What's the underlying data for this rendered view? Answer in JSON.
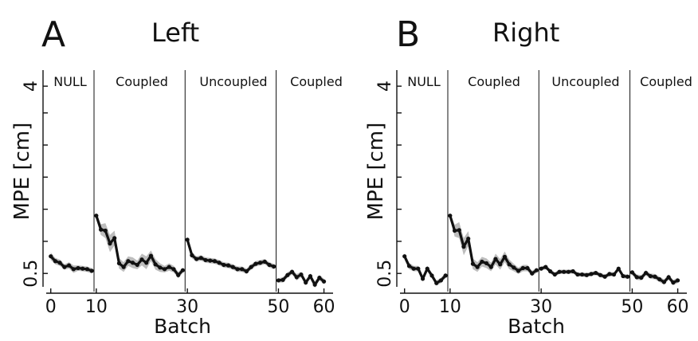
{
  "panels": [
    {
      "letter": "A",
      "title": "Left",
      "ylabel": "MPE [cm]",
      "xlabel": "Batch",
      "phases": [
        "NULL",
        "Coupled",
        "Uncoupled",
        "Coupled"
      ]
    },
    {
      "letter": "B",
      "title": "Right",
      "ylabel": "MPE [cm]",
      "xlabel": "Batch",
      "phases": [
        "NULL",
        "Coupled",
        "Uncoupled",
        "Coupled"
      ]
    }
  ],
  "chart_data": [
    {
      "type": "line",
      "title": "Left",
      "xlabel": "Batch",
      "ylabel": "MPE [cm]",
      "xlim": [
        -1,
        62
      ],
      "ylim": [
        0.25,
        4.3
      ],
      "xticks": [
        0,
        10,
        30,
        50,
        60
      ],
      "yticks": [
        0.5,
        1.1,
        1.7,
        2.3,
        2.9,
        3.5,
        4
      ],
      "ytick_labels": [
        "0.5",
        "",
        "",
        "",
        "",
        "",
        "4"
      ],
      "phase_boundaries": [
        9.5,
        29.5,
        49.5
      ],
      "phases": [
        "NULL",
        "Coupled",
        "Uncoupled",
        "Coupled"
      ],
      "grid": false,
      "segments": [
        {
          "phase": "NULL",
          "x": [
            0,
            1,
            2,
            3,
            4,
            5,
            6,
            7,
            8,
            9
          ],
          "y": [
            0.82,
            0.73,
            0.7,
            0.62,
            0.65,
            0.58,
            0.6,
            0.59,
            0.58,
            0.55
          ],
          "error": [
            0.07,
            0.06,
            0.06,
            0.05,
            0.06,
            0.07,
            0.05,
            0.05,
            0.05,
            0.05
          ]
        },
        {
          "phase": "Coupled",
          "x": [
            10,
            11,
            12,
            13,
            14,
            15,
            16,
            17,
            18,
            19,
            20,
            21,
            22,
            23,
            24,
            25,
            26,
            27,
            28,
            29
          ],
          "y": [
            1.58,
            1.32,
            1.3,
            1.06,
            1.16,
            0.69,
            0.62,
            0.73,
            0.7,
            0.66,
            0.76,
            0.7,
            0.83,
            0.67,
            0.61,
            0.58,
            0.62,
            0.58,
            0.47,
            0.56
          ],
          "error": [
            0.05,
            0.1,
            0.14,
            0.16,
            0.14,
            0.1,
            0.09,
            0.09,
            0.1,
            0.08,
            0.11,
            0.12,
            0.1,
            0.1,
            0.08,
            0.06,
            0.07,
            0.06,
            0.06,
            0.05
          ]
        },
        {
          "phase": "Uncoupled",
          "x": [
            30,
            31,
            32,
            33,
            34,
            35,
            36,
            37,
            38,
            39,
            40,
            41,
            42,
            43,
            44,
            45,
            46,
            47,
            48,
            49
          ],
          "y": [
            1.13,
            0.84,
            0.77,
            0.79,
            0.75,
            0.74,
            0.73,
            0.7,
            0.66,
            0.65,
            0.62,
            0.58,
            0.58,
            0.54,
            0.62,
            0.68,
            0.7,
            0.72,
            0.66,
            0.63
          ],
          "error": [
            0.04,
            0.06,
            0.05,
            0.05,
            0.05,
            0.05,
            0.05,
            0.05,
            0.05,
            0.05,
            0.05,
            0.05,
            0.05,
            0.05,
            0.05,
            0.05,
            0.05,
            0.05,
            0.05,
            0.05
          ]
        },
        {
          "phase": "Coupled",
          "x": [
            50,
            51,
            52,
            53,
            54,
            55,
            56,
            57,
            58,
            59,
            60
          ],
          "y": [
            0.37,
            0.38,
            0.47,
            0.53,
            0.43,
            0.48,
            0.33,
            0.45,
            0.29,
            0.42,
            0.35
          ],
          "error": [
            0.04,
            0.05,
            0.05,
            0.05,
            0.06,
            0.05,
            0.05,
            0.05,
            0.06,
            0.05,
            0.05
          ]
        }
      ]
    },
    {
      "type": "line",
      "title": "Right",
      "xlabel": "Batch",
      "ylabel": "MPE [cm]",
      "xlim": [
        -1,
        62
      ],
      "ylim": [
        0.25,
        4.3
      ],
      "xticks": [
        0,
        10,
        30,
        50,
        60
      ],
      "yticks": [
        0.5,
        1.1,
        1.7,
        2.3,
        2.9,
        3.5,
        4
      ],
      "ytick_labels": [
        "0.5",
        "",
        "",
        "",
        "",
        "",
        "4"
      ],
      "phase_boundaries": [
        9.5,
        29.5,
        49.5
      ],
      "phases": [
        "NULL",
        "Coupled",
        "Uncoupled",
        "Coupled"
      ],
      "grid": false,
      "segments": [
        {
          "phase": "NULL",
          "x": [
            0,
            1,
            2,
            3,
            4,
            5,
            6,
            7,
            8,
            9
          ],
          "y": [
            0.82,
            0.64,
            0.59,
            0.59,
            0.4,
            0.59,
            0.46,
            0.32,
            0.37,
            0.46
          ],
          "error": [
            0.06,
            0.06,
            0.05,
            0.05,
            0.05,
            0.05,
            0.05,
            0.05,
            0.05,
            0.05
          ]
        },
        {
          "phase": "Coupled",
          "x": [
            10,
            11,
            12,
            13,
            14,
            15,
            16,
            17,
            18,
            19,
            20,
            21,
            22,
            23,
            24,
            25,
            26,
            27,
            28,
            29
          ],
          "y": [
            1.58,
            1.3,
            1.31,
            1.0,
            1.15,
            0.68,
            0.62,
            0.72,
            0.69,
            0.62,
            0.77,
            0.67,
            0.81,
            0.67,
            0.61,
            0.55,
            0.6,
            0.6,
            0.5,
            0.56
          ],
          "error": [
            0.05,
            0.11,
            0.15,
            0.16,
            0.14,
            0.1,
            0.09,
            0.09,
            0.09,
            0.08,
            0.1,
            0.1,
            0.1,
            0.09,
            0.07,
            0.06,
            0.06,
            0.06,
            0.05,
            0.05
          ]
        },
        {
          "phase": "Uncoupled",
          "x": [
            30,
            31,
            32,
            33,
            34,
            35,
            36,
            37,
            38,
            39,
            40,
            41,
            42,
            43,
            44,
            45,
            46,
            47,
            48,
            49
          ],
          "y": [
            0.59,
            0.62,
            0.54,
            0.48,
            0.53,
            0.53,
            0.53,
            0.54,
            0.48,
            0.48,
            0.47,
            0.49,
            0.51,
            0.47,
            0.44,
            0.49,
            0.48,
            0.59,
            0.45,
            0.44
          ],
          "error": [
            0.04,
            0.04,
            0.04,
            0.04,
            0.04,
            0.04,
            0.04,
            0.04,
            0.04,
            0.04,
            0.04,
            0.04,
            0.04,
            0.04,
            0.04,
            0.04,
            0.04,
            0.04,
            0.04,
            0.04
          ]
        },
        {
          "phase": "Coupled",
          "x": [
            50,
            51,
            52,
            53,
            54,
            55,
            56,
            57,
            58,
            59,
            60
          ],
          "y": [
            0.52,
            0.43,
            0.42,
            0.51,
            0.45,
            0.44,
            0.39,
            0.34,
            0.43,
            0.33,
            0.37
          ],
          "error": [
            0.05,
            0.05,
            0.05,
            0.05,
            0.05,
            0.05,
            0.05,
            0.05,
            0.05,
            0.05,
            0.05
          ]
        }
      ]
    }
  ]
}
